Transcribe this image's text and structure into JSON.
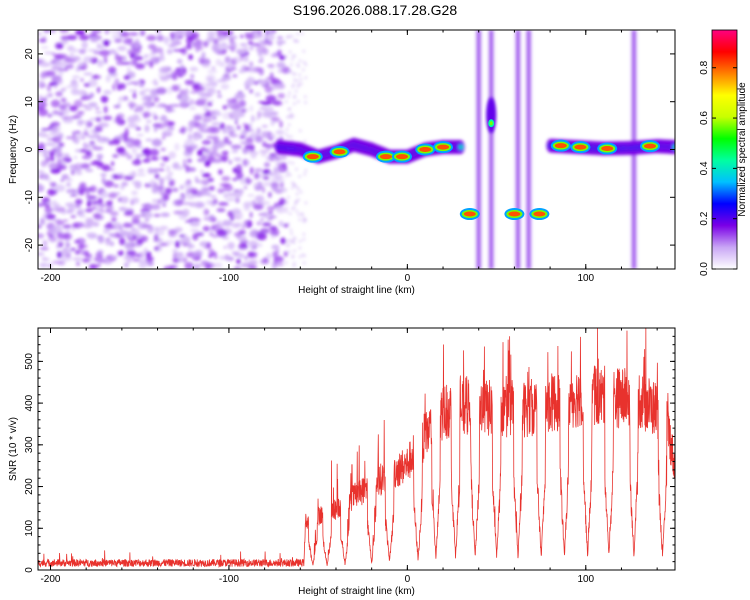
{
  "title": "S196.2026.088.17.28.G28",
  "chart_data": [
    {
      "type": "heatmap",
      "name": "spectrogram",
      "xlabel": "Height of straight line (km)",
      "ylabel": "Frequency (Hz)",
      "xlim": [
        -207,
        150
      ],
      "ylim": [
        -25,
        25
      ],
      "xticks": [
        -200,
        -100,
        0,
        100
      ],
      "yticks": [
        -20,
        -10,
        0,
        10,
        20
      ],
      "colorbar": {
        "label": "Normalized spectral amplitude",
        "range": [
          0.0,
          0.95
        ],
        "ticks": [
          "0.0",
          "0.2",
          "0.4",
          "0.6",
          "0.8"
        ],
        "colors": [
          "#ffffff",
          "#c9a6f5",
          "#7a00e6",
          "#0000ff",
          "#00c0ff",
          "#00ffa0",
          "#00ff00",
          "#c8ff00",
          "#ffff00",
          "#ff8000",
          "#ff0000",
          "#ff0080"
        ]
      },
      "noise_region": [
        -207,
        -68
      ],
      "track_segments": [
        {
          "x": [
            -72,
            -60,
            -50,
            -40,
            -30,
            -20,
            -10,
            0,
            10,
            20,
            30
          ],
          "f": [
            0.5,
            0.0,
            -1.5,
            -0.5,
            1.0,
            0.0,
            -1.5,
            -1.5,
            0.0,
            0.5,
            0.5
          ]
        },
        {
          "x": [
            80,
            95,
            110,
            125,
            140,
            150
          ],
          "f": [
            0.8,
            0.5,
            0.2,
            0.3,
            0.7,
            0.5
          ]
        }
      ],
      "hot_spots": [
        {
          "x": -53,
          "f": -1.5
        },
        {
          "x": -38,
          "f": -0.5
        },
        {
          "x": -12,
          "f": -1.5
        },
        {
          "x": -3,
          "f": -1.5
        },
        {
          "x": 10,
          "f": 0.0
        },
        {
          "x": 20,
          "f": 0.5
        },
        {
          "x": 35,
          "f": -13.5
        },
        {
          "x": 60,
          "f": -13.5
        },
        {
          "x": 74,
          "f": -13.5
        },
        {
          "x": 86,
          "f": 0.8
        },
        {
          "x": 97,
          "f": 0.5
        },
        {
          "x": 112,
          "f": 0.2
        },
        {
          "x": 136,
          "f": 0.7
        }
      ],
      "vertical_streaks": [
        40,
        47,
        62,
        68,
        127
      ],
      "narrow_peak": {
        "x": 47,
        "f": 5.5
      }
    },
    {
      "type": "line",
      "name": "snr",
      "xlabel": "Height of straight line (km)",
      "ylabel": "SNR (10 * v/v)",
      "xlim": [
        -207,
        150
      ],
      "ylim": [
        0,
        580
      ],
      "xticks": [
        -200,
        -100,
        0,
        100
      ],
      "yticks": [
        0,
        100,
        200,
        300,
        400,
        500
      ],
      "color": "#e8322d",
      "noise_floor": 20,
      "envelope": [
        {
          "x": -207,
          "y": 20
        },
        {
          "x": -58,
          "y": 20
        },
        {
          "x": -57,
          "y": 120
        },
        {
          "x": -40,
          "y": 150
        },
        {
          "x": -20,
          "y": 210
        },
        {
          "x": 0,
          "y": 260
        },
        {
          "x": 10,
          "y": 330
        },
        {
          "x": 20,
          "y": 390
        },
        {
          "x": 40,
          "y": 400
        },
        {
          "x": 60,
          "y": 390
        },
        {
          "x": 80,
          "y": 410
        },
        {
          "x": 100,
          "y": 430
        },
        {
          "x": 130,
          "y": 420
        },
        {
          "x": 145,
          "y": 380
        },
        {
          "x": 150,
          "y": 250
        }
      ],
      "dropouts": [
        -53,
        -45,
        -35,
        -20,
        -10,
        6,
        16,
        27,
        38,
        50,
        62,
        75,
        88,
        101,
        113,
        127,
        143
      ]
    }
  ]
}
